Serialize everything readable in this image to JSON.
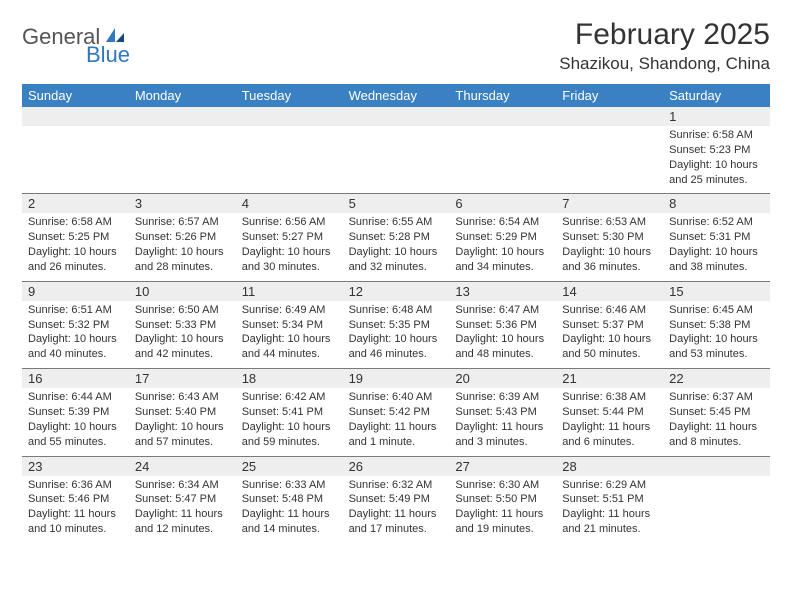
{
  "logo": {
    "general": "General",
    "blue": "Blue"
  },
  "title": "February 2025",
  "location": "Shazikou, Shandong, China",
  "colors": {
    "header_bg": "#3a81c4",
    "header_text": "#ffffff",
    "daynum_bg": "#eeeeee",
    "border": "#7a7a7a",
    "text": "#333333",
    "logo_gray": "#555555",
    "logo_blue": "#2f79bf",
    "background": "#ffffff"
  },
  "typography": {
    "title_fontsize": 30,
    "location_fontsize": 17,
    "dayheader_fontsize": 13,
    "daynum_fontsize": 13,
    "details_fontsize": 11,
    "logo_fontsize": 22
  },
  "day_headers": [
    "Sunday",
    "Monday",
    "Tuesday",
    "Wednesday",
    "Thursday",
    "Friday",
    "Saturday"
  ],
  "weeks": [
    [
      {
        "num": "",
        "sunrise": "",
        "sunset": "",
        "daylight": ""
      },
      {
        "num": "",
        "sunrise": "",
        "sunset": "",
        "daylight": ""
      },
      {
        "num": "",
        "sunrise": "",
        "sunset": "",
        "daylight": ""
      },
      {
        "num": "",
        "sunrise": "",
        "sunset": "",
        "daylight": ""
      },
      {
        "num": "",
        "sunrise": "",
        "sunset": "",
        "daylight": ""
      },
      {
        "num": "",
        "sunrise": "",
        "sunset": "",
        "daylight": ""
      },
      {
        "num": "1",
        "sunrise": "Sunrise: 6:58 AM",
        "sunset": "Sunset: 5:23 PM",
        "daylight": "Daylight: 10 hours and 25 minutes."
      }
    ],
    [
      {
        "num": "2",
        "sunrise": "Sunrise: 6:58 AM",
        "sunset": "Sunset: 5:25 PM",
        "daylight": "Daylight: 10 hours and 26 minutes."
      },
      {
        "num": "3",
        "sunrise": "Sunrise: 6:57 AM",
        "sunset": "Sunset: 5:26 PM",
        "daylight": "Daylight: 10 hours and 28 minutes."
      },
      {
        "num": "4",
        "sunrise": "Sunrise: 6:56 AM",
        "sunset": "Sunset: 5:27 PM",
        "daylight": "Daylight: 10 hours and 30 minutes."
      },
      {
        "num": "5",
        "sunrise": "Sunrise: 6:55 AM",
        "sunset": "Sunset: 5:28 PM",
        "daylight": "Daylight: 10 hours and 32 minutes."
      },
      {
        "num": "6",
        "sunrise": "Sunrise: 6:54 AM",
        "sunset": "Sunset: 5:29 PM",
        "daylight": "Daylight: 10 hours and 34 minutes."
      },
      {
        "num": "7",
        "sunrise": "Sunrise: 6:53 AM",
        "sunset": "Sunset: 5:30 PM",
        "daylight": "Daylight: 10 hours and 36 minutes."
      },
      {
        "num": "8",
        "sunrise": "Sunrise: 6:52 AM",
        "sunset": "Sunset: 5:31 PM",
        "daylight": "Daylight: 10 hours and 38 minutes."
      }
    ],
    [
      {
        "num": "9",
        "sunrise": "Sunrise: 6:51 AM",
        "sunset": "Sunset: 5:32 PM",
        "daylight": "Daylight: 10 hours and 40 minutes."
      },
      {
        "num": "10",
        "sunrise": "Sunrise: 6:50 AM",
        "sunset": "Sunset: 5:33 PM",
        "daylight": "Daylight: 10 hours and 42 minutes."
      },
      {
        "num": "11",
        "sunrise": "Sunrise: 6:49 AM",
        "sunset": "Sunset: 5:34 PM",
        "daylight": "Daylight: 10 hours and 44 minutes."
      },
      {
        "num": "12",
        "sunrise": "Sunrise: 6:48 AM",
        "sunset": "Sunset: 5:35 PM",
        "daylight": "Daylight: 10 hours and 46 minutes."
      },
      {
        "num": "13",
        "sunrise": "Sunrise: 6:47 AM",
        "sunset": "Sunset: 5:36 PM",
        "daylight": "Daylight: 10 hours and 48 minutes."
      },
      {
        "num": "14",
        "sunrise": "Sunrise: 6:46 AM",
        "sunset": "Sunset: 5:37 PM",
        "daylight": "Daylight: 10 hours and 50 minutes."
      },
      {
        "num": "15",
        "sunrise": "Sunrise: 6:45 AM",
        "sunset": "Sunset: 5:38 PM",
        "daylight": "Daylight: 10 hours and 53 minutes."
      }
    ],
    [
      {
        "num": "16",
        "sunrise": "Sunrise: 6:44 AM",
        "sunset": "Sunset: 5:39 PM",
        "daylight": "Daylight: 10 hours and 55 minutes."
      },
      {
        "num": "17",
        "sunrise": "Sunrise: 6:43 AM",
        "sunset": "Sunset: 5:40 PM",
        "daylight": "Daylight: 10 hours and 57 minutes."
      },
      {
        "num": "18",
        "sunrise": "Sunrise: 6:42 AM",
        "sunset": "Sunset: 5:41 PM",
        "daylight": "Daylight: 10 hours and 59 minutes."
      },
      {
        "num": "19",
        "sunrise": "Sunrise: 6:40 AM",
        "sunset": "Sunset: 5:42 PM",
        "daylight": "Daylight: 11 hours and 1 minute."
      },
      {
        "num": "20",
        "sunrise": "Sunrise: 6:39 AM",
        "sunset": "Sunset: 5:43 PM",
        "daylight": "Daylight: 11 hours and 3 minutes."
      },
      {
        "num": "21",
        "sunrise": "Sunrise: 6:38 AM",
        "sunset": "Sunset: 5:44 PM",
        "daylight": "Daylight: 11 hours and 6 minutes."
      },
      {
        "num": "22",
        "sunrise": "Sunrise: 6:37 AM",
        "sunset": "Sunset: 5:45 PM",
        "daylight": "Daylight: 11 hours and 8 minutes."
      }
    ],
    [
      {
        "num": "23",
        "sunrise": "Sunrise: 6:36 AM",
        "sunset": "Sunset: 5:46 PM",
        "daylight": "Daylight: 11 hours and 10 minutes."
      },
      {
        "num": "24",
        "sunrise": "Sunrise: 6:34 AM",
        "sunset": "Sunset: 5:47 PM",
        "daylight": "Daylight: 11 hours and 12 minutes."
      },
      {
        "num": "25",
        "sunrise": "Sunrise: 6:33 AM",
        "sunset": "Sunset: 5:48 PM",
        "daylight": "Daylight: 11 hours and 14 minutes."
      },
      {
        "num": "26",
        "sunrise": "Sunrise: 6:32 AM",
        "sunset": "Sunset: 5:49 PM",
        "daylight": "Daylight: 11 hours and 17 minutes."
      },
      {
        "num": "27",
        "sunrise": "Sunrise: 6:30 AM",
        "sunset": "Sunset: 5:50 PM",
        "daylight": "Daylight: 11 hours and 19 minutes."
      },
      {
        "num": "28",
        "sunrise": "Sunrise: 6:29 AM",
        "sunset": "Sunset: 5:51 PM",
        "daylight": "Daylight: 11 hours and 21 minutes."
      },
      {
        "num": "",
        "sunrise": "",
        "sunset": "",
        "daylight": ""
      }
    ]
  ]
}
